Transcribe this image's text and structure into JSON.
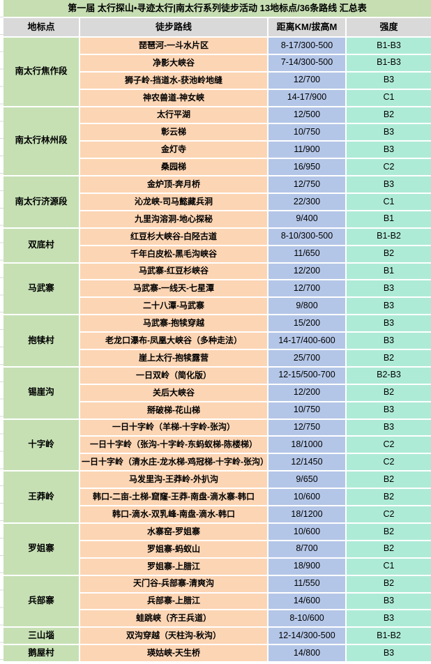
{
  "title": "第一届 太行探山•寻迹太行|南太行系列徒步活动 13地标点/36条路线 汇总表",
  "columns": [
    "地标点",
    "徒步路线",
    "距离KM/拔高M",
    "强度"
  ],
  "colors": {
    "title-bg": "#c6deb2",
    "header-bg": "#d9d9d9",
    "landmark-bg": "#c6e0b4",
    "route-bg": "#fcd5b4",
    "distance-bg": "#b4c6e7",
    "grade-bg": "#aeebd7",
    "gridline": "#ffffff"
  },
  "groups": [
    {
      "landmark": "南太行焦作段",
      "routes": [
        {
          "route": "琵琶河-一斗水片区",
          "distance": "8-17/300-500",
          "grade": "B1-B3"
        },
        {
          "route": "净影大峡谷",
          "distance": "7-14/300-500",
          "grade": "B1-B3"
        },
        {
          "route": "狮子岭-挡道水-获池岭地缝",
          "distance": "12/700",
          "grade": "B3"
        },
        {
          "route": "神农兽道-神女峡",
          "distance": "14-17/900",
          "grade": "C1"
        }
      ]
    },
    {
      "landmark": "南太行林州段",
      "routes": [
        {
          "route": "太行平湖",
          "distance": "12/500",
          "grade": "B2"
        },
        {
          "route": "彰云梯",
          "distance": "10/750",
          "grade": "B3"
        },
        {
          "route": "金灯寺",
          "distance": "11/900",
          "grade": "B3"
        },
        {
          "route": "桑园梯",
          "distance": "16/950",
          "grade": "C2"
        }
      ]
    },
    {
      "landmark": "南太行济源段",
      "routes": [
        {
          "route": "金炉顶-奔月桥",
          "distance": "12/750",
          "grade": "B3"
        },
        {
          "route": "沁龙峡-司马懿藏兵洞",
          "distance": "22/300",
          "grade": "C1"
        },
        {
          "route": "九里沟溶洞-地心探秘",
          "distance": "9/400",
          "grade": "B1"
        }
      ]
    },
    {
      "landmark": "双底村",
      "routes": [
        {
          "route": "红豆杉大峡谷-白陉古道",
          "distance": "8-10/300-500",
          "grade": "B1-B2"
        },
        {
          "route": "千年白皮松-黑毛沟峡谷",
          "distance": "11/650",
          "grade": "B2"
        }
      ]
    },
    {
      "landmark": "马武寨",
      "routes": [
        {
          "route": "马武寨-红豆杉峡谷",
          "distance": "12/200",
          "grade": "B1"
        },
        {
          "route": "马武寨-一线天-七星潭",
          "distance": "12/700",
          "grade": "B3"
        },
        {
          "route": "二十八潭-马武寨",
          "distance": "9/800",
          "grade": "B3"
        }
      ]
    },
    {
      "landmark": "抱犊村",
      "routes": [
        {
          "route": "马武寨-抱犊穿越",
          "distance": "15/200",
          "grade": "B3"
        },
        {
          "route": "老龙口瀑布-凤凰大峡谷（多种走法）",
          "distance": "14-17/400-600",
          "grade": "B3"
        },
        {
          "route": "崖上太行-抱犊露营",
          "distance": "25/700",
          "grade": "B2"
        }
      ]
    },
    {
      "landmark": "锡崖沟",
      "routes": [
        {
          "route": "一日双岭（简化版）",
          "distance": "12-15/500-700",
          "grade": "B2-B3"
        },
        {
          "route": "关后大峡谷",
          "distance": "12/200",
          "grade": "B2"
        },
        {
          "route": "掰破梯-花山梯",
          "distance": "10/750",
          "grade": "B3"
        }
      ]
    },
    {
      "landmark": "十字岭",
      "routes": [
        {
          "route": "一日十字岭（羊梯-十字岭-张沟）",
          "distance": "12/750",
          "grade": "B3"
        },
        {
          "route": "一日十字岭（张沟-十字岭-东蚂蚁梯-陈楼梯）",
          "distance": "18/1000",
          "grade": "C2"
        },
        {
          "route": "一日十字岭（清水庄-龙水梯-鸡冠梯-十字岭-张沟）",
          "distance": "12/1450",
          "grade": "C2"
        }
      ]
    },
    {
      "landmark": "王莽岭",
      "routes": [
        {
          "route": "马发里沟-王莽岭-外扒沟",
          "distance": "9/650",
          "grade": "B2"
        },
        {
          "route": "韩口-二亩-土梯-窟窿-王莽-南盘-滴水寨-韩口",
          "distance": "10/600",
          "grade": "B2"
        },
        {
          "route": "韩口-滴水-双乳峰-南盘-滴水-韩口",
          "distance": "18/1200",
          "grade": "C2"
        }
      ]
    },
    {
      "landmark": "罗姐寨",
      "routes": [
        {
          "route": "水寨窑-罗姐寨",
          "distance": "10/600",
          "grade": "B2"
        },
        {
          "route": "罗姐寨-蚂蚁山",
          "distance": "8/700",
          "grade": "B2"
        },
        {
          "route": "罗姐寨-上腊江",
          "distance": "18/900",
          "grade": "C1"
        }
      ]
    },
    {
      "landmark": "兵部寨",
      "routes": [
        {
          "route": "天门谷-兵部寨-清爽沟",
          "distance": "11/550",
          "grade": "B2"
        },
        {
          "route": "兵部寨-上腊江",
          "distance": "14/600",
          "grade": "B3"
        },
        {
          "route": "蛙跳峡（齐王兵道）",
          "distance": "8-10/600",
          "grade": "B3"
        }
      ]
    },
    {
      "landmark": "三山堖",
      "routes": [
        {
          "route": "双沟穿越（天柱沟-秋沟）",
          "distance": "12-14/300-500",
          "grade": "B1-B2"
        }
      ]
    },
    {
      "landmark": "鹅屋村",
      "routes": [
        {
          "route": "瑛姑峡-天生桥",
          "distance": "14/800",
          "grade": "B3"
        }
      ]
    }
  ]
}
